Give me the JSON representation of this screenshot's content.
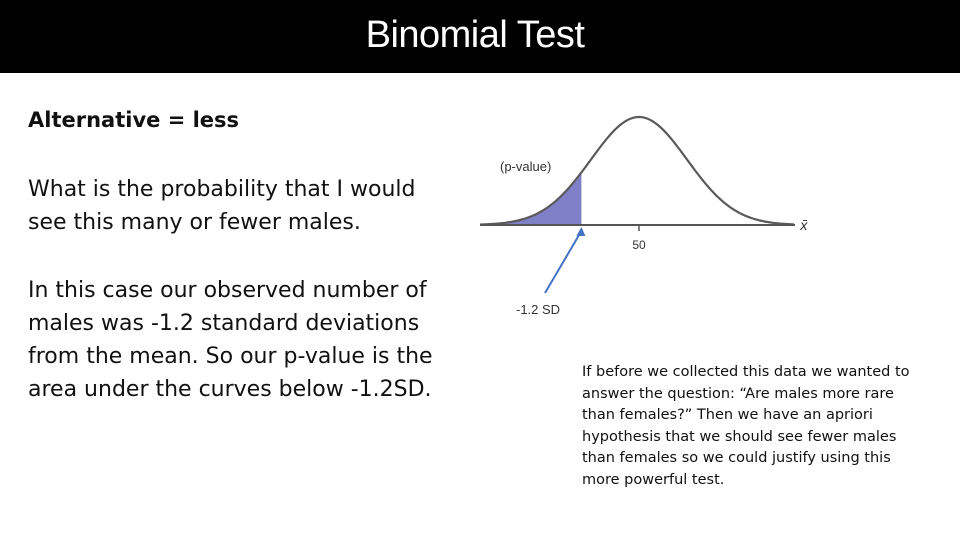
{
  "slide": {
    "title": "Binomial Test",
    "subtitle": "Alternative = less",
    "paragraph_1": "What is the probability that I would see this many or fewer males.",
    "paragraph_2": "In this case our observed number of males was -1.2 standard deviations from the mean.  So our p-value is the area under the curves below -1.2SD.",
    "note": "If before we collected this data we wanted to answer the question: “Are males more rare than females?” Then we have an apriori hypothesis that we should see fewer males than females so we could justify using this more powerful test."
  },
  "figure": {
    "shaded_label": "(p-value)",
    "axis_symbol": "x̄",
    "center_tick": "50",
    "cut_label": "-1.2 SD",
    "cut_sd": -1.2,
    "colors": {
      "shade": "#8080c8",
      "curve": "#5a5a5a",
      "arrow": "#4472c4"
    }
  }
}
